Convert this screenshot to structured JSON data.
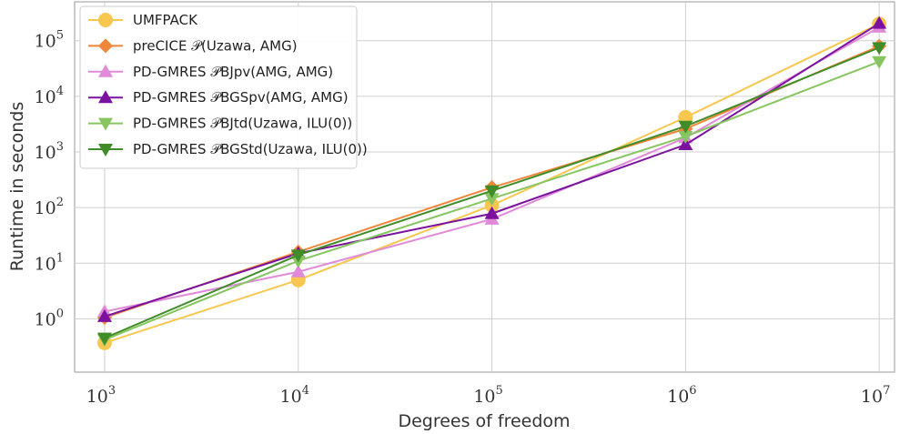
{
  "chart_data": {
    "type": "line",
    "title": "",
    "xlabel": "Degrees of freedom",
    "ylabel": "Runtime in seconds",
    "xscale": "log",
    "yscale": "log",
    "xlim": [
      700,
      12000000
    ],
    "ylim": [
      0.11,
      500000
    ],
    "grid": true,
    "legend_position": "top-left",
    "x": [
      1000,
      10000,
      100000,
      1000000,
      10000000
    ],
    "x_ticks": [
      {
        "base": "10",
        "exp": "3",
        "value": 1000
      },
      {
        "base": "10",
        "exp": "4",
        "value": 10000
      },
      {
        "base": "10",
        "exp": "5",
        "value": 100000
      },
      {
        "base": "10",
        "exp": "6",
        "value": 1000000
      },
      {
        "base": "10",
        "exp": "7",
        "value": 10000000
      }
    ],
    "y_ticks": [
      {
        "base": "10",
        "exp": "0",
        "value": 1
      },
      {
        "base": "10",
        "exp": "1",
        "value": 10
      },
      {
        "base": "10",
        "exp": "2",
        "value": 100
      },
      {
        "base": "10",
        "exp": "3",
        "value": 1000
      },
      {
        "base": "10",
        "exp": "4",
        "value": 10000
      },
      {
        "base": "10",
        "exp": "5",
        "value": 100000
      }
    ],
    "series": [
      {
        "name": "UMFPACK",
        "color": "#f7c74f",
        "marker": "circle",
        "values": [
          0.37,
          5,
          110,
          4200,
          200000
        ]
      },
      {
        "name": "preCICE 𝒫(Uzawa, AMG)",
        "color": "#f0863a",
        "marker": "diamond",
        "values": [
          1.05,
          16,
          230,
          2600,
          80000
        ]
      },
      {
        "name": "PD-GMRES 𝒫BJpv(AMG, AMG)",
        "color": "#e08ad8",
        "marker": "triangle-up",
        "values": [
          1.35,
          7,
          62,
          1800,
          175000
        ]
      },
      {
        "name": "PD-GMRES 𝒫BGSpv(AMG, AMG)",
        "color": "#7b129e",
        "marker": "triangle-up",
        "values": [
          1.1,
          15,
          78,
          1350,
          205000
        ]
      },
      {
        "name": "PD-GMRES 𝒫BJtd(Uzawa, ILU(0))",
        "color": "#86c560",
        "marker": "triangle-down",
        "values": [
          0.42,
          11,
          145,
          1900,
          42000
        ]
      },
      {
        "name": "PD-GMRES 𝒫BGStd(Uzawa, ILU(0))",
        "color": "#3f8c28",
        "marker": "triangle-down",
        "values": [
          0.45,
          14,
          200,
          2900,
          75000
        ]
      }
    ]
  }
}
